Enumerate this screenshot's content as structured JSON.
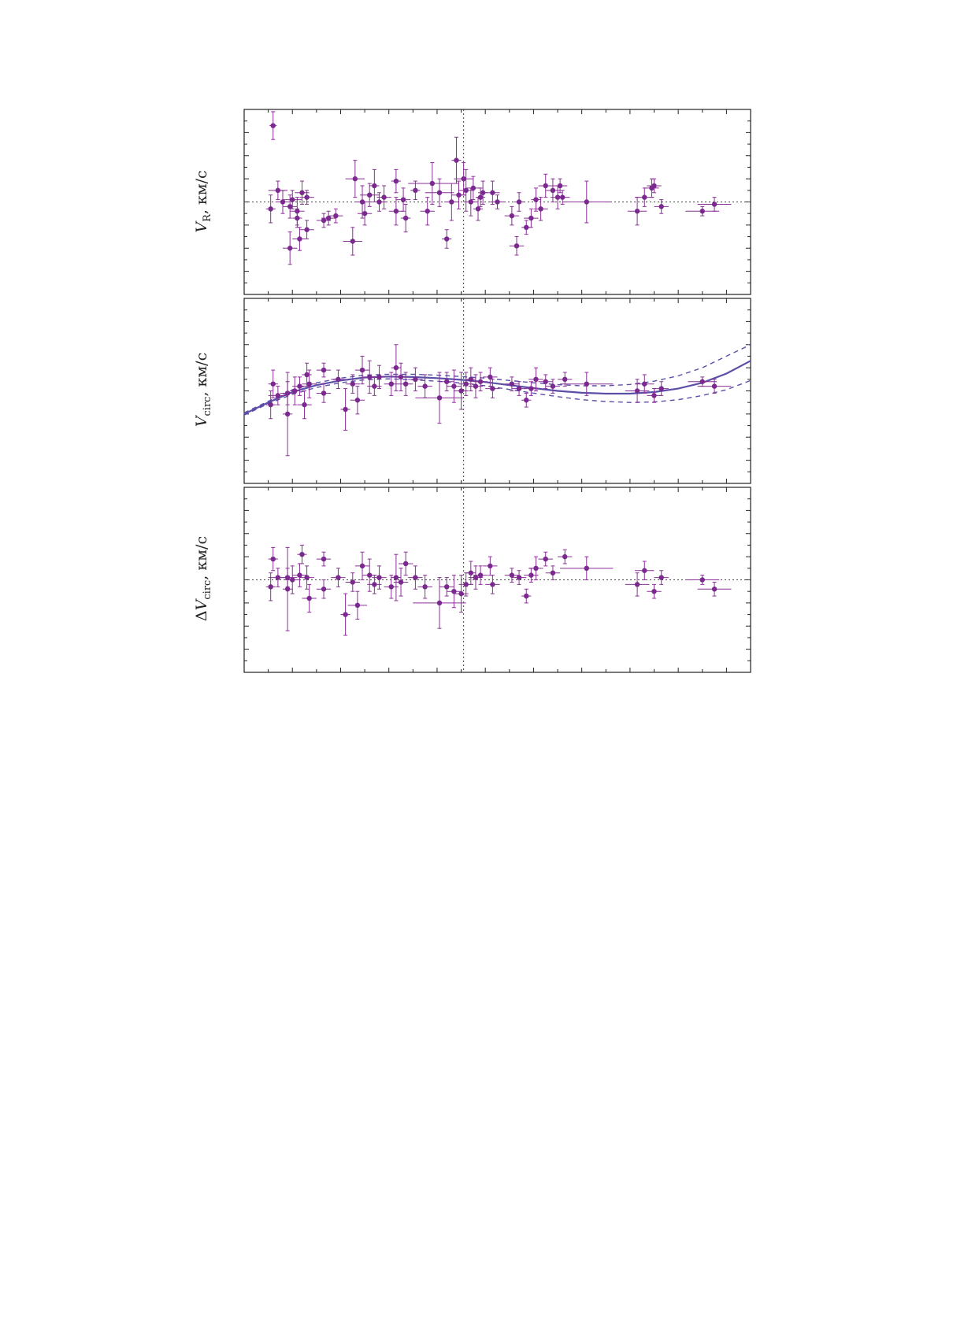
{
  "chart_data": [
    {
      "type": "scatter",
      "panel": "top",
      "ylabel": {
        "var": "V",
        "sub": "R",
        "unit": ", км/с"
      },
      "xlim": [
        0,
        21
      ],
      "ylim": [
        -4,
        4
      ],
      "x_ticks_major_every": 2,
      "hline": 0,
      "vline": 9.1,
      "points": [
        [
          1.2,
          3.3,
          0.15,
          0.6
        ],
        [
          1.4,
          0.5,
          0.4,
          0.4
        ],
        [
          1.1,
          -0.3,
          0.2,
          0.6
        ],
        [
          1.6,
          0.0,
          0.3,
          0.5
        ],
        [
          1.9,
          -0.2,
          0.3,
          0.5
        ],
        [
          2.0,
          0.1,
          0.4,
          0.4
        ],
        [
          2.2,
          -0.4,
          0.3,
          0.6
        ],
        [
          2.3,
          -1.6,
          0.3,
          0.5
        ],
        [
          2.4,
          0.4,
          0.3,
          0.5
        ],
        [
          1.9,
          -2.0,
          0.3,
          0.7
        ],
        [
          2.2,
          -0.7,
          0.2,
          0.4
        ],
        [
          2.6,
          -1.2,
          0.3,
          0.4
        ],
        [
          2.6,
          0.2,
          0.3,
          0.3
        ],
        [
          3.3,
          -0.8,
          0.3,
          0.3
        ],
        [
          3.5,
          -0.7,
          0.3,
          0.3
        ],
        [
          3.8,
          -0.6,
          0.3,
          0.3
        ],
        [
          4.5,
          -1.7,
          0.4,
          0.6
        ],
        [
          4.6,
          1.0,
          0.4,
          0.8
        ],
        [
          4.9,
          0.0,
          0.3,
          0.7
        ],
        [
          5.0,
          -0.5,
          0.3,
          0.5
        ],
        [
          5.2,
          0.3,
          0.4,
          0.5
        ],
        [
          5.4,
          0.7,
          0.2,
          0.7
        ],
        [
          5.6,
          0.0,
          0.3,
          0.4
        ],
        [
          5.8,
          0.2,
          0.3,
          0.5
        ],
        [
          6.3,
          -0.4,
          0.3,
          0.6
        ],
        [
          6.6,
          0.1,
          0.3,
          0.5
        ],
        [
          6.3,
          0.9,
          0.2,
          0.5
        ],
        [
          6.7,
          -0.7,
          0.2,
          0.6
        ],
        [
          7.1,
          0.5,
          0.2,
          0.4
        ],
        [
          7.6,
          -0.4,
          0.3,
          0.6
        ],
        [
          7.8,
          0.8,
          1.0,
          0.9
        ],
        [
          8.1,
          0.4,
          0.6,
          0.6
        ],
        [
          8.4,
          -1.6,
          0.2,
          0.4
        ],
        [
          8.6,
          0.0,
          0.3,
          0.8
        ],
        [
          8.8,
          1.8,
          0.2,
          1.0
        ],
        [
          8.9,
          0.3,
          0.3,
          0.6
        ],
        [
          9.1,
          1.0,
          0.4,
          0.7
        ],
        [
          9.2,
          0.5,
          0.3,
          0.9
        ],
        [
          9.4,
          0.0,
          0.3,
          0.6
        ],
        [
          9.5,
          0.6,
          0.3,
          0.5
        ],
        [
          9.8,
          0.2,
          0.2,
          0.4
        ],
        [
          9.7,
          -0.3,
          0.2,
          0.5
        ],
        [
          9.9,
          0.4,
          0.2,
          0.5
        ],
        [
          10.3,
          0.4,
          0.3,
          0.5
        ],
        [
          10.5,
          0.0,
          0.3,
          0.3
        ],
        [
          11.1,
          -0.6,
          0.3,
          0.4
        ],
        [
          11.3,
          -1.9,
          0.3,
          0.4
        ],
        [
          11.4,
          0.0,
          0.2,
          0.4
        ],
        [
          11.7,
          -1.1,
          0.2,
          0.3
        ],
        [
          11.9,
          -0.7,
          0.3,
          0.4
        ],
        [
          12.1,
          0.1,
          0.2,
          0.5
        ],
        [
          12.3,
          -0.3,
          0.3,
          0.5
        ],
        [
          12.5,
          0.7,
          0.3,
          0.5
        ],
        [
          12.8,
          0.5,
          0.3,
          0.5
        ],
        [
          13.0,
          0.2,
          0.3,
          0.5
        ],
        [
          13.1,
          0.7,
          0.3,
          0.3
        ],
        [
          13.2,
          0.2,
          0.3,
          0.3
        ],
        [
          14.2,
          0.0,
          1.0,
          0.9
        ],
        [
          16.3,
          -0.4,
          0.4,
          0.6
        ],
        [
          16.6,
          0.2,
          0.4,
          0.4
        ],
        [
          16.9,
          0.6,
          0.3,
          0.4
        ],
        [
          17.0,
          0.7,
          0.3,
          0.3
        ],
        [
          17.3,
          -0.2,
          0.3,
          0.3
        ],
        [
          19.0,
          -0.4,
          0.7,
          0.2
        ],
        [
          19.5,
          -0.1,
          0.7,
          0.3
        ]
      ]
    },
    {
      "type": "scatter",
      "panel": "middle",
      "ylabel": {
        "var": "V",
        "sub": "circ",
        "unit": ", км/с"
      },
      "xlim": [
        0,
        21
      ],
      "ylim": [
        -4,
        4
      ],
      "vline": 9.1,
      "curve": [
        [
          0,
          -1.0
        ],
        [
          1,
          -0.5
        ],
        [
          2,
          -0.05
        ],
        [
          3,
          0.25
        ],
        [
          4,
          0.45
        ],
        [
          5,
          0.58
        ],
        [
          6,
          0.62
        ],
        [
          7,
          0.6
        ],
        [
          8,
          0.55
        ],
        [
          9,
          0.48
        ],
        [
          10,
          0.38
        ],
        [
          11,
          0.25
        ],
        [
          12,
          0.12
        ],
        [
          13,
          0.0
        ],
        [
          14,
          -0.08
        ],
        [
          15,
          -0.12
        ],
        [
          16,
          -0.12
        ],
        [
          17,
          -0.05
        ],
        [
          18,
          0.1
        ],
        [
          19,
          0.35
        ],
        [
          20,
          0.75
        ],
        [
          21,
          1.3
        ]
      ],
      "curve_upper": [
        [
          0,
          -0.95
        ],
        [
          1,
          -0.45
        ],
        [
          2,
          0.05
        ],
        [
          3,
          0.35
        ],
        [
          4,
          0.55
        ],
        [
          5,
          0.68
        ],
        [
          6,
          0.72
        ],
        [
          7,
          0.72
        ],
        [
          8,
          0.68
        ],
        [
          9,
          0.62
        ],
        [
          10,
          0.55
        ],
        [
          11,
          0.45
        ],
        [
          12,
          0.35
        ],
        [
          13,
          0.27
        ],
        [
          14,
          0.22
        ],
        [
          15,
          0.22
        ],
        [
          16,
          0.28
        ],
        [
          17,
          0.42
        ],
        [
          18,
          0.65
        ],
        [
          19,
          1.0
        ],
        [
          20,
          1.5
        ],
        [
          21,
          2.0
        ]
      ],
      "curve_lower": [
        [
          0,
          -1.05
        ],
        [
          1,
          -0.55
        ],
        [
          2,
          -0.15
        ],
        [
          3,
          0.15
        ],
        [
          4,
          0.35
        ],
        [
          5,
          0.48
        ],
        [
          6,
          0.52
        ],
        [
          7,
          0.48
        ],
        [
          8,
          0.42
        ],
        [
          9,
          0.34
        ],
        [
          10,
          0.22
        ],
        [
          11,
          0.06
        ],
        [
          12,
          -0.1
        ],
        [
          13,
          -0.25
        ],
        [
          14,
          -0.38
        ],
        [
          15,
          -0.46
        ],
        [
          16,
          -0.5
        ],
        [
          17,
          -0.48
        ],
        [
          18,
          -0.38
        ],
        [
          19,
          -0.2
        ],
        [
          20,
          0.05
        ],
        [
          21,
          0.45
        ]
      ],
      "points": [
        [
          1.2,
          0.3,
          0.2,
          0.6
        ],
        [
          1.1,
          -0.6,
          0.2,
          0.6
        ],
        [
          1.4,
          -0.2,
          0.4,
          0.4
        ],
        [
          1.8,
          -0.1,
          0.3,
          0.5
        ],
        [
          1.8,
          -1.0,
          0.2,
          1.8
        ],
        [
          2.1,
          0.0,
          0.2,
          0.6
        ],
        [
          2.3,
          0.2,
          0.3,
          0.4
        ],
        [
          2.5,
          -0.6,
          0.3,
          0.6
        ],
        [
          2.6,
          0.7,
          0.2,
          0.5
        ],
        [
          2.7,
          0.3,
          0.3,
          0.6
        ],
        [
          3.3,
          0.9,
          0.3,
          0.3
        ],
        [
          3.3,
          -0.1,
          0.3,
          0.4
        ],
        [
          3.9,
          0.5,
          0.3,
          0.4
        ],
        [
          4.2,
          -0.8,
          0.2,
          0.9
        ],
        [
          4.5,
          0.3,
          0.3,
          0.4
        ],
        [
          4.7,
          -0.4,
          0.3,
          0.6
        ],
        [
          4.9,
          0.9,
          0.3,
          0.6
        ],
        [
          5.2,
          0.6,
          0.3,
          0.7
        ],
        [
          5.4,
          0.2,
          0.3,
          0.4
        ],
        [
          5.6,
          0.6,
          0.3,
          0.5
        ],
        [
          6.1,
          0.3,
          0.3,
          0.5
        ],
        [
          6.3,
          1.0,
          0.2,
          1.0
        ],
        [
          6.5,
          0.6,
          0.3,
          0.6
        ],
        [
          6.7,
          0.3,
          0.3,
          0.5
        ],
        [
          7.1,
          0.5,
          0.3,
          0.5
        ],
        [
          7.5,
          0.2,
          0.3,
          0.5
        ],
        [
          8.1,
          -0.3,
          1.0,
          1.1
        ],
        [
          8.4,
          0.4,
          0.3,
          0.4
        ],
        [
          8.7,
          0.2,
          0.3,
          0.7
        ],
        [
          9.0,
          0.0,
          0.3,
          0.8
        ],
        [
          9.2,
          0.3,
          0.3,
          0.5
        ],
        [
          9.4,
          0.5,
          0.2,
          0.5
        ],
        [
          9.6,
          0.2,
          0.3,
          0.5
        ],
        [
          9.8,
          0.4,
          0.3,
          0.4
        ],
        [
          10.2,
          0.6,
          0.3,
          0.4
        ],
        [
          10.3,
          0.1,
          0.3,
          0.4
        ],
        [
          11.1,
          0.3,
          0.3,
          0.3
        ],
        [
          11.4,
          0.1,
          0.3,
          0.3
        ],
        [
          11.7,
          -0.4,
          0.2,
          0.3
        ],
        [
          11.9,
          0.1,
          0.3,
          0.3
        ],
        [
          12.1,
          0.5,
          0.3,
          0.5
        ],
        [
          12.5,
          0.4,
          0.3,
          0.3
        ],
        [
          12.8,
          0.2,
          0.3,
          0.3
        ],
        [
          13.3,
          0.5,
          0.3,
          0.3
        ],
        [
          14.2,
          0.3,
          1.1,
          0.5
        ],
        [
          16.3,
          0.0,
          0.5,
          0.5
        ],
        [
          16.6,
          0.3,
          0.4,
          0.4
        ],
        [
          17.0,
          -0.2,
          0.3,
          0.3
        ],
        [
          17.3,
          0.1,
          0.3,
          0.3
        ],
        [
          19.0,
          0.4,
          0.6,
          0.2
        ],
        [
          19.5,
          0.2,
          0.7,
          0.3
        ]
      ]
    },
    {
      "type": "scatter",
      "panel": "bottom",
      "ylabel": {
        "var": "V",
        "sub": "circ",
        "prefix": "Δ",
        "unit": ", км/с"
      },
      "xlim": [
        0,
        21
      ],
      "ylim": [
        -4,
        4
      ],
      "hline": 0,
      "vline": 9.1,
      "points": [
        [
          1.2,
          0.9,
          0.2,
          0.5
        ],
        [
          1.1,
          -0.3,
          0.2,
          0.6
        ],
        [
          1.4,
          0.1,
          0.4,
          0.4
        ],
        [
          1.8,
          0.1,
          0.4,
          0.4
        ],
        [
          1.8,
          -0.4,
          0.2,
          1.8
        ],
        [
          2.0,
          0.0,
          0.3,
          0.6
        ],
        [
          2.3,
          0.2,
          0.3,
          0.5
        ],
        [
          2.4,
          1.1,
          0.2,
          0.4
        ],
        [
          2.6,
          0.1,
          0.3,
          0.5
        ],
        [
          2.7,
          -0.8,
          0.3,
          0.6
        ],
        [
          3.3,
          0.9,
          0.3,
          0.3
        ],
        [
          3.3,
          -0.4,
          0.3,
          0.4
        ],
        [
          3.9,
          0.1,
          0.3,
          0.4
        ],
        [
          4.2,
          -1.5,
          0.2,
          0.9
        ],
        [
          4.5,
          -0.1,
          0.3,
          0.4
        ],
        [
          4.7,
          -1.1,
          0.4,
          0.6
        ],
        [
          4.9,
          0.6,
          0.3,
          0.6
        ],
        [
          5.2,
          0.2,
          0.3,
          0.7
        ],
        [
          5.4,
          -0.2,
          0.3,
          0.4
        ],
        [
          5.6,
          0.1,
          0.3,
          0.5
        ],
        [
          6.1,
          -0.3,
          0.3,
          0.5
        ],
        [
          6.3,
          0.1,
          0.2,
          1.0
        ],
        [
          6.5,
          -0.1,
          0.3,
          0.6
        ],
        [
          6.7,
          0.7,
          0.3,
          0.5
        ],
        [
          7.1,
          0.1,
          0.3,
          0.5
        ],
        [
          7.5,
          -0.3,
          0.3,
          0.5
        ],
        [
          8.1,
          -1.0,
          1.1,
          1.1
        ],
        [
          8.4,
          -0.3,
          0.3,
          0.4
        ],
        [
          8.7,
          -0.5,
          0.3,
          0.7
        ],
        [
          9.0,
          -0.6,
          0.3,
          0.8
        ],
        [
          9.2,
          -0.2,
          0.3,
          0.5
        ],
        [
          9.4,
          0.3,
          0.2,
          0.5
        ],
        [
          9.6,
          0.1,
          0.3,
          0.5
        ],
        [
          9.8,
          0.2,
          0.3,
          0.4
        ],
        [
          10.2,
          0.6,
          0.3,
          0.4
        ],
        [
          10.3,
          -0.2,
          0.3,
          0.4
        ],
        [
          11.1,
          0.2,
          0.3,
          0.3
        ],
        [
          11.4,
          0.1,
          0.3,
          0.3
        ],
        [
          11.7,
          -0.7,
          0.2,
          0.3
        ],
        [
          11.9,
          0.2,
          0.3,
          0.3
        ],
        [
          12.1,
          0.5,
          0.3,
          0.5
        ],
        [
          12.5,
          0.9,
          0.3,
          0.3
        ],
        [
          12.8,
          0.3,
          0.3,
          0.3
        ],
        [
          13.3,
          1.0,
          0.3,
          0.3
        ],
        [
          14.2,
          0.5,
          1.1,
          0.5
        ],
        [
          16.3,
          -0.2,
          0.5,
          0.5
        ],
        [
          16.6,
          0.4,
          0.4,
          0.4
        ],
        [
          17.0,
          -0.5,
          0.3,
          0.3
        ],
        [
          17.3,
          0.1,
          0.3,
          0.3
        ],
        [
          19.0,
          0.0,
          0.7,
          0.2
        ],
        [
          19.5,
          -0.4,
          0.7,
          0.3
        ]
      ]
    }
  ]
}
